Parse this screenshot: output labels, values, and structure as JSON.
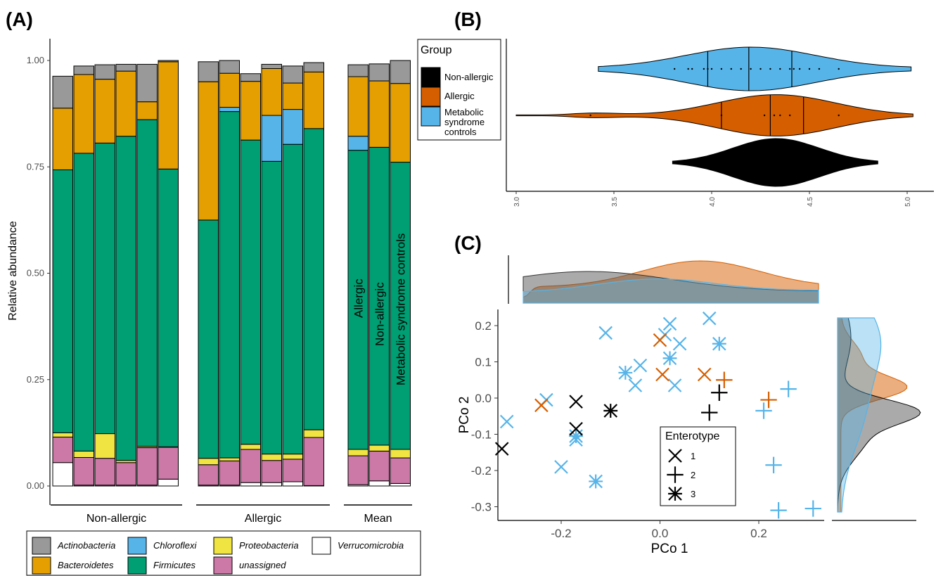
{
  "colors": {
    "Actinobacteria": "#999999",
    "Bacteroidetes": "#E69F00",
    "Chloroflexi": "#56B4E9",
    "Firmicutes": "#009E73",
    "Proteobacteria": "#F0E442",
    "unassigned": "#CC79A7",
    "Verrucomicrobia": "#FFFFFF",
    "nonallergic": "#000000",
    "allergic": "#D55E00",
    "metabolic": "#56B4E9"
  },
  "panels": {
    "a": "(A)",
    "b": "(B)",
    "c": "(C)"
  },
  "chart_data": [
    {
      "id": "A",
      "type": "bar",
      "stacked": true,
      "ylabel": "Relative abundance",
      "ylim": [
        0,
        1.05
      ],
      "yticks": [
        "0.00",
        "0.25",
        "0.50",
        "0.75",
        "1.00"
      ],
      "phyla": [
        "Verrucomicrobia",
        "unassigned",
        "Proteobacteria",
        "Firmicutes",
        "Chloroflexi",
        "Bacteroidetes",
        "Actinobacteria"
      ],
      "groups": [
        {
          "label": "Non-allergic",
          "bars": [
            [
              0.055,
              0.06,
              0.01,
              0.618,
              0,
              0.145,
              0.075
            ],
            [
              0.002,
              0.065,
              0.015,
              0.7,
              0,
              0.185,
              0.02
            ],
            [
              0.002,
              0.063,
              0.058,
              0.683,
              0,
              0.15,
              0.034
            ],
            [
              0.002,
              0.053,
              0.005,
              0.762,
              0,
              0.153,
              0.016
            ],
            [
              0.002,
              0.088,
              0.003,
              0.768,
              0,
              0.042,
              0.088
            ],
            [
              0.016,
              0.075,
              0.001,
              0.653,
              0,
              0.252,
              0.003
            ]
          ]
        },
        {
          "label": "Allergic",
          "bars": [
            [
              0.002,
              0.048,
              0.015,
              0.56,
              0,
              0.325,
              0.047
            ],
            [
              0.002,
              0.057,
              0.007,
              0.814,
              0.01,
              0.08,
              0.03
            ],
            [
              0.008,
              0.078,
              0.012,
              0.715,
              0,
              0.138,
              0.018
            ],
            [
              0.008,
              0.052,
              0.015,
              0.688,
              0.108,
              0.11,
              0.01
            ],
            [
              0.01,
              0.053,
              0.012,
              0.728,
              0.082,
              0.062,
              0.04
            ],
            [
              0.001,
              0.113,
              0.018,
              0.708,
              0,
              0.133,
              0.022
            ]
          ]
        },
        {
          "label": "Mean",
          "bars": [
            [
              0.003,
              0.068,
              0.015,
              0.703,
              0.033,
              0.14,
              0.028
            ],
            [
              0.012,
              0.07,
              0.014,
              0.7,
              0,
              0.156,
              0.04
            ],
            [
              0.006,
              0.06,
              0.02,
              0.675,
              0,
              0.185,
              0.054
            ]
          ]
        }
      ],
      "bar_labels": [
        "Allergic",
        "Non-allergic",
        "Metabolic syndrome controls"
      ],
      "legend": [
        {
          "name": "Actinobacteria",
          "italic": true
        },
        {
          "name": "Chloroflexi",
          "italic": true
        },
        {
          "name": "Proteobacteria",
          "italic": true
        },
        {
          "name": "Verrucomicrobia",
          "italic": true
        },
        {
          "name": "Bacteroidetes",
          "italic": true
        },
        {
          "name": "Firmicutes",
          "italic": true
        },
        {
          "name": "unassigned",
          "italic": true
        }
      ]
    },
    {
      "id": "B",
      "type": "violin",
      "xlim": [
        3.0,
        5.0
      ],
      "xticks": [
        "3.0",
        "3.5",
        "4.0",
        "4.5",
        "5.0"
      ],
      "legend_title": "Group",
      "groups": [
        {
          "name": "Non-allergic",
          "range": [
            3.8,
            4.85
          ],
          "points": []
        },
        {
          "name": "Allergic",
          "range": [
            3.0,
            5.03
          ],
          "quartiles": [
            4.05,
            4.3,
            4.47
          ],
          "points": [
            3.38,
            4.05,
            4.27,
            4.32,
            4.35,
            4.4,
            4.65
          ]
        },
        {
          "name": "Metabolic syndrome controls",
          "range": [
            3.42,
            5.02
          ],
          "quartiles": [
            3.98,
            4.19,
            4.41
          ],
          "points": [
            3.81,
            3.88,
            3.9,
            3.96,
            3.98,
            4.0,
            4.05,
            4.1,
            4.15,
            4.2,
            4.25,
            4.3,
            4.35,
            4.4,
            4.42,
            4.45,
            4.5,
            4.55,
            4.65
          ]
        }
      ]
    },
    {
      "id": "C",
      "type": "scatter",
      "xlabel": "PCo 1",
      "ylabel": "PCo 2",
      "xlim": [
        -0.33,
        0.33
      ],
      "ylim": [
        -0.33,
        0.24
      ],
      "xticks": [
        "-0.2",
        "0.0",
        "0.2"
      ],
      "yticks": [
        "0.2",
        "0.1",
        "0.0",
        "-0.1",
        "-0.2",
        "-0.3"
      ],
      "legend_title": "Enterotype",
      "legend_items": [
        "1",
        "2",
        "3"
      ],
      "points": [
        {
          "x": -0.31,
          "y": -0.065,
          "g": "metabolic",
          "e": 1
        },
        {
          "x": -0.23,
          "y": -0.005,
          "g": "metabolic",
          "e": 1
        },
        {
          "x": -0.2,
          "y": -0.19,
          "g": "metabolic",
          "e": 1
        },
        {
          "x": -0.11,
          "y": 0.18,
          "g": "metabolic",
          "e": 1
        },
        {
          "x": -0.04,
          "y": 0.09,
          "g": "metabolic",
          "e": 1
        },
        {
          "x": -0.05,
          "y": 0.035,
          "g": "metabolic",
          "e": 1
        },
        {
          "x": 0.02,
          "y": 0.205,
          "g": "metabolic",
          "e": 1
        },
        {
          "x": 0.04,
          "y": 0.15,
          "g": "metabolic",
          "e": 1
        },
        {
          "x": 0.01,
          "y": 0.175,
          "g": "metabolic",
          "e": 1
        },
        {
          "x": 0.03,
          "y": 0.035,
          "g": "metabolic",
          "e": 1
        },
        {
          "x": 0.1,
          "y": 0.22,
          "g": "metabolic",
          "e": 1
        },
        {
          "x": -0.17,
          "y": -0.115,
          "g": "metabolic",
          "e": 1
        },
        {
          "x": 0.21,
          "y": -0.035,
          "g": "metabolic",
          "e": 2
        },
        {
          "x": 0.26,
          "y": 0.025,
          "g": "metabolic",
          "e": 2
        },
        {
          "x": 0.23,
          "y": -0.185,
          "g": "metabolic",
          "e": 2
        },
        {
          "x": 0.24,
          "y": -0.31,
          "g": "metabolic",
          "e": 2
        },
        {
          "x": 0.31,
          "y": -0.305,
          "g": "metabolic",
          "e": 2
        },
        {
          "x": -0.17,
          "y": -0.105,
          "g": "metabolic",
          "e": 3
        },
        {
          "x": -0.13,
          "y": -0.23,
          "g": "metabolic",
          "e": 3
        },
        {
          "x": -0.07,
          "y": 0.07,
          "g": "metabolic",
          "e": 3
        },
        {
          "x": 0.02,
          "y": 0.11,
          "g": "metabolic",
          "e": 3
        },
        {
          "x": 0.12,
          "y": 0.15,
          "g": "metabolic",
          "e": 3
        },
        {
          "x": -0.24,
          "y": -0.02,
          "g": "allergic",
          "e": 1
        },
        {
          "x": 0.0,
          "y": 0.16,
          "g": "allergic",
          "e": 1
        },
        {
          "x": 0.005,
          "y": 0.065,
          "g": "allergic",
          "e": 1
        },
        {
          "x": 0.09,
          "y": 0.065,
          "g": "allergic",
          "e": 1
        },
        {
          "x": 0.13,
          "y": 0.05,
          "g": "allergic",
          "e": 2
        },
        {
          "x": 0.22,
          "y": -0.005,
          "g": "allergic",
          "e": 2
        },
        {
          "x": -0.32,
          "y": -0.14,
          "g": "nonallergic",
          "e": 1
        },
        {
          "x": -0.17,
          "y": -0.01,
          "g": "nonallergic",
          "e": 1
        },
        {
          "x": -0.17,
          "y": -0.085,
          "g": "nonallergic",
          "e": 1
        },
        {
          "x": 0.12,
          "y": 0.015,
          "g": "nonallergic",
          "e": 2
        },
        {
          "x": 0.1,
          "y": -0.04,
          "g": "nonallergic",
          "e": 2
        },
        {
          "x": -0.1,
          "y": -0.035,
          "g": "nonallergic",
          "e": 3
        }
      ]
    }
  ]
}
